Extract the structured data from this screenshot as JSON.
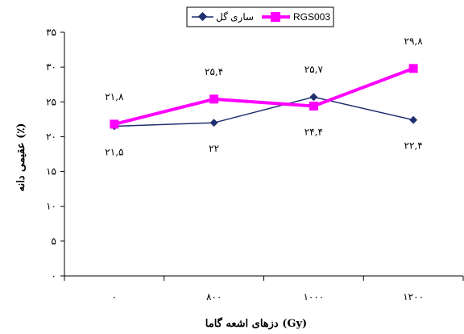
{
  "chart_data": {
    "type": "line",
    "title": "",
    "xlabel": "دزهای اشعه گاما (Gy)",
    "ylabel": "عقیمی دانه (٪)",
    "categories": [
      "٠",
      "٨٠٠",
      "١٠٠٠",
      "١٢٠٠"
    ],
    "ylim": [
      0,
      35
    ],
    "yticks": [
      0,
      5,
      10,
      15,
      20,
      25,
      30,
      35
    ],
    "ytick_labels": [
      "٠",
      "۵",
      "١٠",
      "١۵",
      "٢٠",
      "٢۵",
      "٣٠",
      "٣۵"
    ],
    "grid": false,
    "legend_position": "top",
    "series": [
      {
        "name": "ساری گل",
        "color": "#1f2f6f",
        "marker": "diamond",
        "values": [
          21.5,
          22,
          25.7,
          22.4
        ],
        "labels": [
          "٢١,۵",
          "٢٢",
          "٢۵,٧",
          "٢٢,۴"
        ]
      },
      {
        "name": "RGS003",
        "color": "#ff00ff",
        "marker": "square",
        "values": [
          21.8,
          25.4,
          24.4,
          29.8
        ],
        "labels": [
          "٢١,٨",
          "٢۵,۴",
          "٢۴,۴",
          "٢٩,٨"
        ]
      }
    ]
  }
}
